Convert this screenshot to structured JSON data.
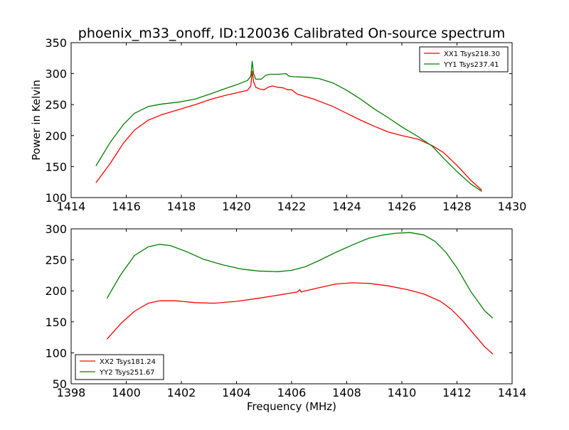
{
  "figure": {
    "title": "phoenix_m33_onoff, ID:120036 Calibrated On-source spectrum"
  },
  "chart_data": [
    {
      "type": "line",
      "title": "phoenix_m33_onoff, ID:120036 Calibrated On-source spectrum",
      "xlabel": "",
      "ylabel": "Power in Kelvin",
      "xlim": [
        1414,
        1430
      ],
      "ylim": [
        100,
        350
      ],
      "xticks": [
        1414,
        1416,
        1418,
        1420,
        1422,
        1424,
        1426,
        1428,
        1430
      ],
      "yticks": [
        100,
        150,
        200,
        250,
        300,
        350
      ],
      "grid": false,
      "legend_position": "top-right",
      "series": [
        {
          "name": "XX1 Tsys218.30",
          "color": "#ff0000",
          "x": [
            1414.9,
            1415.4,
            1415.9,
            1416.3,
            1416.8,
            1417.3,
            1417.9,
            1418.5,
            1419.1,
            1419.6,
            1420.0,
            1420.4,
            1420.52,
            1420.57,
            1420.62,
            1420.7,
            1420.85,
            1421.0,
            1421.15,
            1421.3,
            1421.5,
            1421.7,
            1421.85,
            1422.0,
            1422.2,
            1422.8,
            1423.5,
            1424.0,
            1424.5,
            1425.0,
            1425.5,
            1426.0,
            1426.6,
            1427.1,
            1427.5,
            1428.0,
            1428.5,
            1428.9
          ],
          "values": [
            124,
            154,
            188,
            209,
            225,
            234,
            242,
            250,
            259,
            265,
            269,
            273,
            280,
            304,
            287,
            278,
            275,
            274,
            278,
            280,
            278,
            277,
            274,
            274,
            267,
            259,
            247,
            236,
            225,
            215,
            206,
            200,
            194,
            184,
            173,
            152,
            128,
            112
          ]
        },
        {
          "name": "YY1 Tsys237.41",
          "color": "#008000",
          "x": [
            1414.9,
            1415.4,
            1415.9,
            1416.3,
            1416.8,
            1417.3,
            1417.9,
            1418.5,
            1419.1,
            1419.6,
            1420.0,
            1420.4,
            1420.52,
            1420.57,
            1420.62,
            1420.7,
            1420.9,
            1421.05,
            1421.2,
            1421.5,
            1421.8,
            1421.9,
            1422.1,
            1422.6,
            1423.0,
            1423.5,
            1424.0,
            1424.5,
            1425.0,
            1425.5,
            1426.0,
            1426.6,
            1427.1,
            1427.5,
            1428.0,
            1428.5,
            1428.9
          ],
          "values": [
            151,
            188,
            218,
            236,
            247,
            251,
            254,
            259,
            268,
            276,
            282,
            289,
            296,
            320,
            300,
            291,
            291,
            297,
            299,
            299,
            300,
            296,
            295,
            294,
            292,
            285,
            273,
            259,
            243,
            229,
            214,
            198,
            183,
            164,
            142,
            122,
            110
          ]
        }
      ]
    },
    {
      "type": "line",
      "title": "",
      "xlabel": "Frequency (MHz)",
      "ylabel": "",
      "xlim": [
        1398,
        1414
      ],
      "ylim": [
        50,
        300
      ],
      "xticks": [
        1398,
        1400,
        1402,
        1404,
        1406,
        1408,
        1410,
        1412,
        1414
      ],
      "yticks": [
        50,
        100,
        150,
        200,
        250,
        300
      ],
      "grid": false,
      "legend_position": "bottom-left",
      "series": [
        {
          "name": "XX2 Tsys181.24",
          "color": "#ff0000",
          "x": [
            1399.3,
            1399.8,
            1400.3,
            1400.8,
            1401.2,
            1401.8,
            1402.5,
            1403.2,
            1404.0,
            1404.8,
            1405.5,
            1406.2,
            1406.3,
            1406.35,
            1406.4,
            1407.0,
            1407.6,
            1408.2,
            1408.8,
            1409.5,
            1410.2,
            1410.8,
            1411.4,
            1411.8,
            1412.2,
            1412.6,
            1413.0,
            1413.3
          ],
          "values": [
            122,
            147,
            167,
            180,
            184,
            184,
            181,
            180,
            183,
            188,
            193,
            198,
            202,
            198,
            199,
            205,
            211,
            213,
            212,
            208,
            202,
            195,
            183,
            170,
            152,
            131,
            110,
            98
          ]
        },
        {
          "name": "YY2 Tsys251.67",
          "color": "#008000",
          "x": [
            1399.3,
            1399.8,
            1400.3,
            1400.8,
            1401.2,
            1401.6,
            1402.2,
            1402.8,
            1403.5,
            1404.2,
            1404.8,
            1405.5,
            1406.0,
            1406.5,
            1407.0,
            1407.6,
            1408.2,
            1408.8,
            1409.3,
            1409.8,
            1410.3,
            1410.8,
            1411.2,
            1411.6,
            1412.0,
            1412.5,
            1413.0,
            1413.3
          ],
          "values": [
            188,
            226,
            257,
            271,
            275,
            273,
            263,
            251,
            242,
            235,
            232,
            231,
            233,
            239,
            249,
            262,
            274,
            285,
            290,
            293,
            294,
            290,
            280,
            262,
            237,
            199,
            168,
            156
          ]
        }
      ]
    }
  ]
}
